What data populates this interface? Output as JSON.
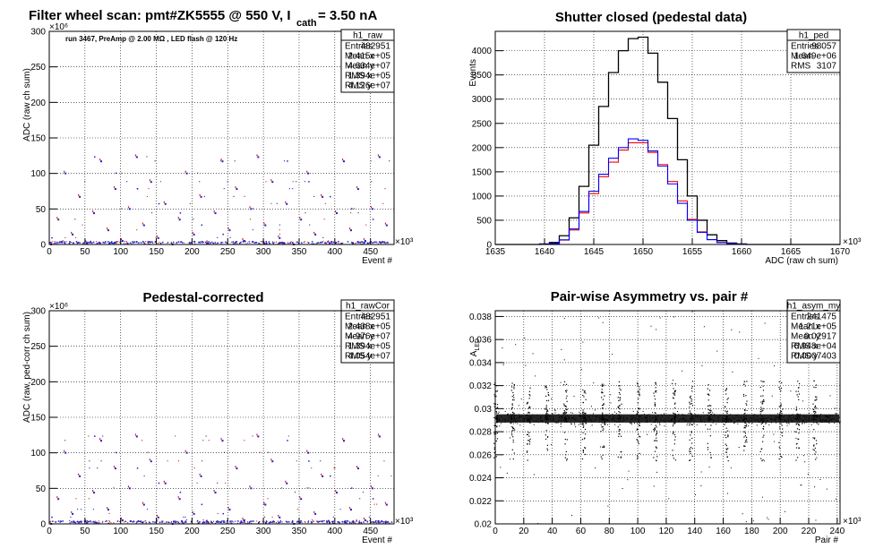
{
  "panels": {
    "raw": {
      "title_main": "Filter wheel scan: pmt#ZK5555 @   550 V, I",
      "title_sub": "cath",
      "title_end": "= 3.50 nA",
      "annotation": "run 3467, PreAmp @ 2.00 MΩ , LED flash @  120 Hz",
      "xlabel": "Event #",
      "ylabel": "ADC (raw ch sum)",
      "x_multiplier": "×10³",
      "y_multiplier": "×10⁶",
      "xticks": [
        "0",
        "50",
        "100",
        "150",
        "200",
        "250",
        "300",
        "350",
        "400",
        "450"
      ],
      "yticks": [
        "0",
        "50",
        "100",
        "150",
        "200",
        "250",
        "300"
      ],
      "stats": {
        "name": "h1_raw",
        "rows": [
          [
            "Entries",
            "482951"
          ],
          [
            "Mean x",
            "2.415e+05"
          ],
          [
            "Mean y",
            "4.634e+07"
          ],
          [
            "RMS x",
            "1.394e+05"
          ],
          [
            "RMS y",
            "4.126e+07"
          ]
        ]
      }
    },
    "ped": {
      "title": "Shutter closed (pedestal data)",
      "xlabel": "ADC (raw ch sum)",
      "ylabel": "Events",
      "x_multiplier": "×10³",
      "xticks": [
        "1635",
        "1640",
        "1645",
        "1650",
        "1655",
        "1660",
        "1665",
        "1670"
      ],
      "yticks": [
        "0",
        "500",
        "1000",
        "1500",
        "2000",
        "2500",
        "3000",
        "3500",
        "4000"
      ],
      "stats": {
        "name": "h1_ped",
        "rows": [
          [
            "Entries",
            "98057"
          ],
          [
            "Mean",
            "1.649e+06"
          ],
          [
            "RMS",
            "3107"
          ]
        ]
      }
    },
    "cor": {
      "title": "Pedestal-corrected",
      "xlabel": "Event #",
      "ylabel": "ADC (raw, ped-corr ch sum)",
      "x_multiplier": "×10³",
      "y_multiplier": "×10⁶",
      "xticks": [
        "0",
        "50",
        "100",
        "150",
        "200",
        "250",
        "300",
        "350",
        "400",
        "450"
      ],
      "yticks": [
        "0",
        "50",
        "100",
        "150",
        "200",
        "250",
        "300"
      ],
      "stats": {
        "name": "h1_rawCor",
        "rows": [
          [
            "Entries",
            "482951"
          ],
          [
            "Mean x",
            "2.438e+05"
          ],
          [
            "Mean y",
            "4.976e+07"
          ],
          [
            "RMS x",
            "1.394e+05"
          ],
          [
            "RMS y",
            "4.054e+07"
          ]
        ]
      }
    },
    "asym": {
      "title": "Pair-wise Asymmetry vs. pair #",
      "xlabel": "Pair #",
      "ylabel": "A",
      "ylabel_sub": "LED",
      "x_multiplier": "×10³",
      "xticks": [
        "0",
        "20",
        "40",
        "60",
        "80",
        "100",
        "120",
        "140",
        "160",
        "180",
        "200",
        "220",
        "240"
      ],
      "yticks": [
        "0.02",
        "0.022",
        "0.024",
        "0.026",
        "0.028",
        "0.03",
        "0.032",
        "0.034",
        "0.036",
        "0.038"
      ],
      "stats": {
        "name": "h1_asym_my",
        "rows": [
          [
            "Entries",
            "241475"
          ],
          [
            "Mean x",
            "1.21e+05"
          ],
          [
            "Mean y",
            "0.02917"
          ],
          [
            "RMS x",
            "6.948e+04"
          ],
          [
            "RMS y",
            "0.0007403"
          ]
        ]
      }
    }
  },
  "chart_data": [
    {
      "type": "scatter",
      "name": "h1_raw",
      "xlim": [
        0,
        483
      ],
      "ylim": [
        0,
        300
      ],
      "x_units": "Event # ×10³",
      "y_units": "ADC ×10⁶",
      "filter_levels": [
        0,
        2,
        5,
        9,
        14,
        20,
        27,
        35,
        44,
        50,
        57,
        67,
        78,
        88,
        100,
        117,
        123
      ],
      "period_kevents": 10,
      "colors": {
        "level": "#2020c0",
        "edge": "#d02020"
      },
      "grid": true
    },
    {
      "type": "line",
      "name": "h1_ped",
      "xlim": [
        1635,
        1670
      ],
      "ylim": [
        0,
        4400
      ],
      "grid": true,
      "series": [
        {
          "color": "#000000",
          "x": [
            1640,
            1641,
            1642,
            1643,
            1644,
            1645,
            1646,
            1647,
            1648,
            1649,
            1650,
            1651,
            1652,
            1653,
            1654,
            1655,
            1656,
            1657,
            1658,
            1659,
            1660,
            1661
          ],
          "values": [
            10,
            40,
            180,
            550,
            1200,
            2050,
            2850,
            3550,
            4000,
            4250,
            4280,
            3950,
            3350,
            2600,
            1750,
            1000,
            500,
            200,
            80,
            30,
            10,
            0
          ]
        },
        {
          "color": "#ff0000",
          "x": [
            1640,
            1641,
            1642,
            1643,
            1644,
            1645,
            1646,
            1647,
            1648,
            1649,
            1650,
            1651,
            1652,
            1653,
            1654,
            1655,
            1656,
            1657,
            1658,
            1659,
            1660,
            1661
          ],
          "values": [
            5,
            20,
            90,
            300,
            650,
            1050,
            1400,
            1700,
            1950,
            2100,
            2100,
            1900,
            1650,
            1300,
            900,
            520,
            260,
            100,
            40,
            15,
            5,
            0
          ]
        },
        {
          "color": "#0000ff",
          "x": [
            1640,
            1641,
            1642,
            1643,
            1644,
            1645,
            1646,
            1647,
            1648,
            1649,
            1650,
            1651,
            1652,
            1653,
            1654,
            1655,
            1656,
            1657,
            1658,
            1659,
            1660,
            1661
          ],
          "values": [
            5,
            20,
            95,
            320,
            680,
            1100,
            1450,
            1780,
            2000,
            2180,
            2150,
            1930,
            1620,
            1250,
            850,
            500,
            250,
            100,
            40,
            15,
            5,
            0
          ]
        }
      ]
    },
    {
      "type": "scatter",
      "name": "h1_rawCor",
      "xlim": [
        0,
        483
      ],
      "ylim": [
        0,
        300
      ],
      "x_units": "Event # ×10³",
      "y_units": "ADC ×10⁶",
      "filter_levels": [
        0,
        2,
        5,
        9,
        14,
        20,
        27,
        35,
        44,
        50,
        57,
        67,
        78,
        88,
        100,
        117,
        123
      ],
      "period_kevents": 10,
      "colors": {
        "level": "#2020c0",
        "edge": "#d02020"
      },
      "grid": true
    },
    {
      "type": "scatter",
      "name": "h1_asym_my",
      "xlim": [
        0,
        242
      ],
      "ylim": [
        0.02,
        0.0385
      ],
      "band": {
        "center": 0.02915,
        "half_width": 0.0004
      },
      "spike_positions": [
        0,
        12,
        23,
        36,
        49,
        62,
        75,
        87,
        100,
        112,
        125,
        137,
        150,
        162,
        175,
        187,
        200,
        212,
        224
      ],
      "spike_range": [
        0.0255,
        0.0325
      ],
      "color": "#000000",
      "grid": true
    }
  ]
}
